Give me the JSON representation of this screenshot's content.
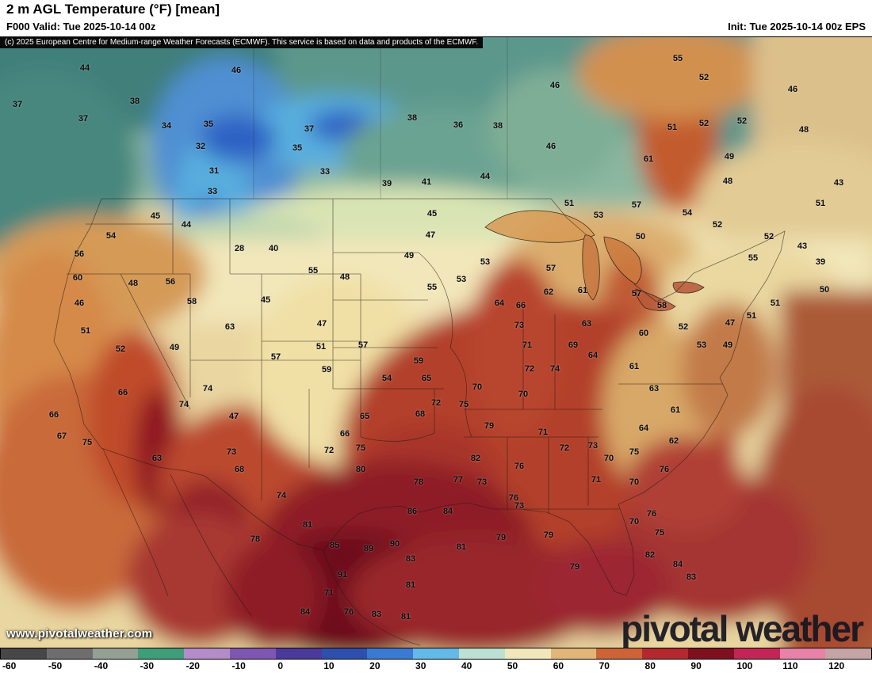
{
  "header": {
    "title": "2 m AGL Temperature (°F) [mean]",
    "valid": "F000 Valid: Tue 2025-10-14 00z",
    "init": "Init: Tue 2025-10-14 00z EPS"
  },
  "copyright": "(c) 2025 European Centre for Medium-range Weather Forecasts (ECMWF). This service is based on data and products of the ECMWF.",
  "watermark": "www.pivotalweather.com",
  "logo": {
    "text": "pivotal weather"
  },
  "colorbar": {
    "unit": "°F",
    "ticks": [
      "-60",
      "-50",
      "-40",
      "-30",
      "-20",
      "-10",
      "0",
      "10",
      "20",
      "30",
      "40",
      "50",
      "60",
      "70",
      "80",
      "90",
      "100",
      "110",
      "120"
    ],
    "colors": [
      "#474747",
      "#6e6e6e",
      "#94a094",
      "#3f9d7a",
      "#b48cc8",
      "#7e57b2",
      "#4a3a9c",
      "#2f4fae",
      "#3a7ad2",
      "#64b9e8",
      "#bce0d4",
      "#f0e8bc",
      "#e2b678",
      "#cc6438",
      "#b42830",
      "#7e1020",
      "#c22556",
      "#e882a6",
      "#c4a4a4"
    ]
  },
  "map": {
    "labels": [
      [
        44,
        107,
        39
      ],
      [
        46,
        298,
        42
      ],
      [
        55,
        855,
        27
      ],
      [
        52,
        888,
        51
      ],
      [
        46,
        700,
        61
      ],
      [
        46,
        1000,
        66
      ],
      [
        37,
        22,
        85
      ],
      [
        38,
        170,
        81
      ],
      [
        37,
        105,
        103
      ],
      [
        34,
        210,
        112
      ],
      [
        35,
        263,
        110
      ],
      [
        37,
        390,
        116
      ],
      [
        38,
        520,
        102
      ],
      [
        36,
        578,
        111
      ],
      [
        38,
        628,
        112
      ],
      [
        51,
        848,
        114
      ],
      [
        52,
        888,
        109
      ],
      [
        52,
        936,
        106
      ],
      [
        48,
        1014,
        117
      ],
      [
        32,
        253,
        138
      ],
      [
        35,
        375,
        140
      ],
      [
        46,
        695,
        138
      ],
      [
        61,
        818,
        154
      ],
      [
        49,
        920,
        151
      ],
      [
        31,
        270,
        169
      ],
      [
        33,
        410,
        170
      ],
      [
        39,
        488,
        185
      ],
      [
        41,
        538,
        183
      ],
      [
        44,
        612,
        176
      ],
      [
        48,
        918,
        182
      ],
      [
        43,
        1058,
        184
      ],
      [
        33,
        268,
        195
      ],
      [
        57,
        803,
        212
      ],
      [
        51,
        718,
        210
      ],
      [
        45,
        196,
        226
      ],
      [
        44,
        235,
        237
      ],
      [
        45,
        545,
        223
      ],
      [
        47,
        543,
        250
      ],
      [
        53,
        755,
        225
      ],
      [
        54,
        867,
        222
      ],
      [
        52,
        905,
        237
      ],
      [
        51,
        1035,
        210
      ],
      [
        52,
        970,
        252
      ],
      [
        50,
        808,
        252
      ],
      [
        54,
        140,
        251
      ],
      [
        56,
        100,
        274
      ],
      [
        28,
        302,
        267
      ],
      [
        40,
        345,
        267
      ],
      [
        49,
        516,
        276
      ],
      [
        53,
        612,
        284
      ],
      [
        55,
        950,
        279
      ],
      [
        43,
        1012,
        264
      ],
      [
        39,
        1035,
        284
      ],
      [
        60,
        98,
        304
      ],
      [
        48,
        168,
        311
      ],
      [
        56,
        215,
        309
      ],
      [
        55,
        395,
        295
      ],
      [
        48,
        435,
        303
      ],
      [
        53,
        582,
        306
      ],
      [
        57,
        695,
        292
      ],
      [
        55,
        545,
        316
      ],
      [
        62,
        692,
        322
      ],
      [
        61,
        735,
        320
      ],
      [
        57,
        803,
        324
      ],
      [
        58,
        835,
        339
      ],
      [
        64,
        630,
        336
      ],
      [
        66,
        657,
        339
      ],
      [
        46,
        100,
        336
      ],
      [
        58,
        242,
        334
      ],
      [
        45,
        335,
        332
      ],
      [
        51,
        948,
        352
      ],
      [
        51,
        978,
        336
      ],
      [
        50,
        1040,
        319
      ],
      [
        51,
        108,
        371
      ],
      [
        63,
        290,
        366
      ],
      [
        47,
        406,
        362
      ],
      [
        73,
        655,
        364
      ],
      [
        63,
        740,
        362
      ],
      [
        60,
        812,
        374
      ],
      [
        52,
        862,
        366
      ],
      [
        47,
        921,
        361
      ],
      [
        52,
        152,
        394
      ],
      [
        49,
        220,
        392
      ],
      [
        57,
        348,
        404
      ],
      [
        51,
        405,
        391
      ],
      [
        57,
        458,
        389
      ],
      [
        71,
        665,
        389
      ],
      [
        69,
        723,
        389
      ],
      [
        53,
        885,
        389
      ],
      [
        49,
        918,
        389
      ],
      [
        64,
        748,
        402
      ],
      [
        59,
        528,
        409
      ],
      [
        59,
        412,
        420
      ],
      [
        54,
        488,
        431
      ],
      [
        65,
        538,
        431
      ],
      [
        72,
        668,
        419
      ],
      [
        74,
        700,
        419
      ],
      [
        61,
        800,
        416
      ],
      [
        63,
        825,
        444
      ],
      [
        66,
        155,
        449
      ],
      [
        74,
        262,
        444
      ],
      [
        70,
        602,
        442
      ],
      [
        70,
        660,
        451
      ],
      [
        74,
        232,
        464
      ],
      [
        72,
        550,
        462
      ],
      [
        75,
        585,
        464
      ],
      [
        61,
        852,
        471
      ],
      [
        47,
        295,
        479
      ],
      [
        68,
        530,
        476
      ],
      [
        65,
        460,
        479
      ],
      [
        66,
        68,
        477
      ],
      [
        79,
        617,
        491
      ],
      [
        71,
        685,
        499
      ],
      [
        66,
        435,
        501
      ],
      [
        64,
        812,
        494
      ],
      [
        67,
        78,
        504
      ],
      [
        75,
        110,
        512
      ],
      [
        62,
        850,
        510
      ],
      [
        75,
        455,
        519
      ],
      [
        72,
        415,
        522
      ],
      [
        73,
        292,
        524
      ],
      [
        72,
        712,
        519
      ],
      [
        73,
        748,
        516
      ],
      [
        63,
        198,
        532
      ],
      [
        82,
        600,
        532
      ],
      [
        76,
        655,
        542
      ],
      [
        70,
        768,
        532
      ],
      [
        75,
        800,
        524
      ],
      [
        68,
        302,
        546
      ],
      [
        80,
        455,
        546
      ],
      [
        76,
        838,
        546
      ],
      [
        71,
        752,
        559
      ],
      [
        77,
        578,
        559
      ],
      [
        78,
        528,
        562
      ],
      [
        73,
        608,
        562
      ],
      [
        70,
        800,
        562
      ],
      [
        74,
        355,
        579
      ],
      [
        76,
        648,
        582
      ],
      [
        73,
        655,
        592
      ],
      [
        86,
        520,
        599
      ],
      [
        84,
        565,
        599
      ],
      [
        76,
        822,
        602
      ],
      [
        70,
        800,
        612
      ],
      [
        81,
        388,
        616
      ],
      [
        79,
        632,
        632
      ],
      [
        79,
        692,
        629
      ],
      [
        78,
        322,
        634
      ],
      [
        75,
        832,
        626
      ],
      [
        85,
        422,
        642
      ],
      [
        89,
        465,
        646
      ],
      [
        90,
        498,
        640
      ],
      [
        81,
        582,
        644
      ],
      [
        82,
        820,
        654
      ],
      [
        83,
        518,
        659
      ],
      [
        84,
        855,
        666
      ],
      [
        79,
        725,
        669
      ],
      [
        91,
        432,
        679
      ],
      [
        83,
        872,
        682
      ],
      [
        81,
        518,
        692
      ],
      [
        71,
        415,
        702
      ],
      [
        84,
        385,
        726
      ],
      [
        76,
        440,
        726
      ],
      [
        83,
        475,
        729
      ],
      [
        81,
        512,
        732
      ]
    ]
  }
}
